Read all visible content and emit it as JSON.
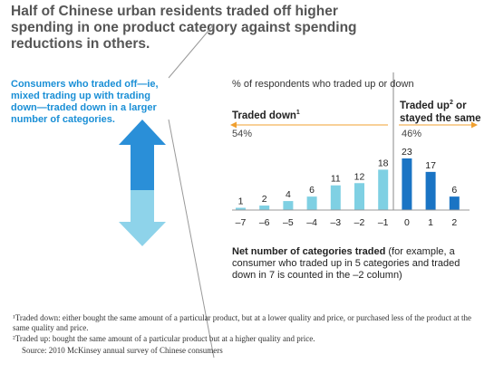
{
  "title": "Half of Chinese urban residents traded off higher spending in one product category against spending reductions in others.",
  "callout": "Consumers who traded off—ie, mixed trading up with trading down—traded down in a larger number of categories.",
  "subtitle": "% of respondents who traded up or down",
  "group_down": {
    "label": "Traded down",
    "sup": "1",
    "percent": "54%"
  },
  "group_up": {
    "label_a": "Traded up",
    "sup": "2",
    "label_b": " or stayed the same",
    "percent": "46%"
  },
  "xlabel_bold": "Net number of categories traded",
  "xlabel_rest": " (for example, a consumer who traded up in 5 categories and traded down in 7 is counted in the –2 column)",
  "footnotes": [
    "¹Traded down: either bought the same amount of a particular product, but at a lower quality and price, or purchased less of the product at the same quality and price.",
    "²Traded up: bought the same amount of a particular product but at a higher quality and price.",
    "Source: 2010 McKinsey annual survey of Chinese consumers"
  ],
  "colors": {
    "down": "#7fd0e3",
    "up": "#1a74c4",
    "accent": "#f0a030",
    "arrow_top": "#2a8fd8",
    "arrow_bottom": "#8ed3ea"
  },
  "chart_data": {
    "type": "bar",
    "categories": [
      "–7",
      "–6",
      "–5",
      "–4",
      "–3",
      "–2",
      "–1",
      "0",
      "1",
      "2"
    ],
    "values": [
      1,
      2,
      4,
      6,
      11,
      12,
      18,
      23,
      17,
      6
    ],
    "series_groups": [
      "down",
      "down",
      "down",
      "down",
      "down",
      "down",
      "down",
      "up",
      "up",
      "up"
    ],
    "ylim": [
      0,
      23
    ]
  }
}
